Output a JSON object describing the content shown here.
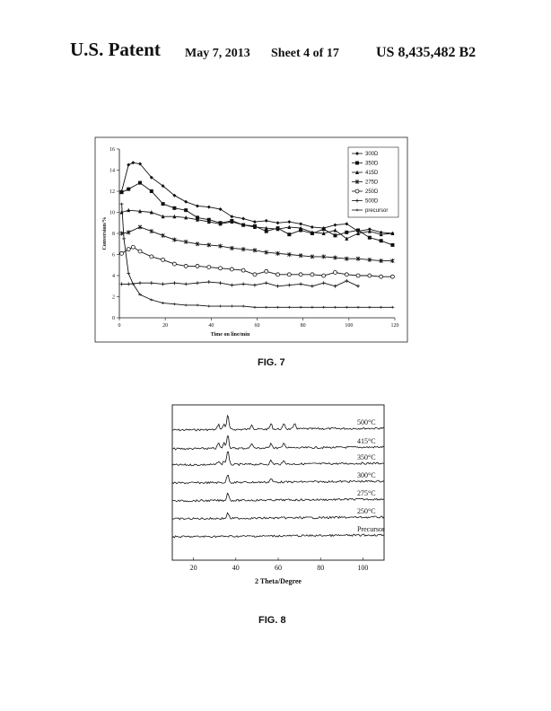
{
  "header": {
    "left": "U.S. Patent",
    "date": "May 7, 2013",
    "sheet": "Sheet 4 of 17",
    "patent_no": "US 8,435,482 B2"
  },
  "figures": {
    "fig7_label": "FIG. 7",
    "fig8_label": "FIG. 8"
  },
  "chart_data": [
    {
      "type": "line",
      "xlabel": "Time on line/min",
      "ylabel": "Conversion/%",
      "xlim": [
        0,
        120
      ],
      "ylim": [
        0,
        16
      ],
      "xticks": [
        0,
        20,
        40,
        60,
        80,
        100,
        120
      ],
      "yticks": [
        0,
        2,
        4,
        6,
        8,
        10,
        12,
        14,
        16
      ],
      "legend_position": "top-right",
      "grid": false,
      "series": [
        {
          "name": "300D",
          "marker": "diamond",
          "points": [
            [
              1,
              12
            ],
            [
              4,
              14.5
            ],
            [
              6,
              14.7
            ],
            [
              9,
              14.6
            ],
            [
              14,
              13.3
            ],
            [
              19,
              12.5
            ],
            [
              24,
              11.6
            ],
            [
              29,
              11
            ],
            [
              34,
              10.6
            ],
            [
              39,
              10.5
            ],
            [
              44,
              10.3
            ],
            [
              49,
              9.6
            ],
            [
              54,
              9.4
            ],
            [
              59,
              9.1
            ],
            [
              64,
              9.2
            ],
            [
              69,
              9
            ],
            [
              74,
              9.1
            ],
            [
              79,
              8.9
            ],
            [
              84,
              8.6
            ],
            [
              89,
              8.5
            ],
            [
              94,
              8.8
            ],
            [
              99,
              8.9
            ],
            [
              104,
              8.2
            ],
            [
              109,
              8.4
            ],
            [
              114,
              8.1
            ],
            [
              119,
              8
            ]
          ]
        },
        {
          "name": "350D",
          "marker": "square",
          "points": [
            [
              1,
              11.9
            ],
            [
              4,
              12.2
            ],
            [
              9,
              12.8
            ],
            [
              14,
              12
            ],
            [
              19,
              10.8
            ],
            [
              24,
              10.4
            ],
            [
              29,
              10.2
            ],
            [
              34,
              9.5
            ],
            [
              39,
              9.3
            ],
            [
              44,
              9
            ],
            [
              49,
              9.2
            ],
            [
              54,
              8.8
            ],
            [
              59,
              8.7
            ],
            [
              64,
              8.2
            ],
            [
              69,
              8.5
            ],
            [
              74,
              7.9
            ],
            [
              79,
              8.3
            ],
            [
              84,
              8
            ],
            [
              89,
              8.4
            ],
            [
              94,
              7.8
            ],
            [
              99,
              8.1
            ],
            [
              104,
              8.3
            ],
            [
              109,
              7.6
            ],
            [
              114,
              7.3
            ],
            [
              119,
              6.9
            ]
          ]
        },
        {
          "name": "415D",
          "marker": "triangle",
          "points": [
            [
              1,
              10
            ],
            [
              4,
              10.2
            ],
            [
              9,
              10.1
            ],
            [
              14,
              10
            ],
            [
              19,
              9.6
            ],
            [
              24,
              9.6
            ],
            [
              29,
              9.5
            ],
            [
              34,
              9.3
            ],
            [
              39,
              9.1
            ],
            [
              44,
              8.9
            ],
            [
              49,
              9.1
            ],
            [
              54,
              8.8
            ],
            [
              59,
              8.6
            ],
            [
              64,
              8.5
            ],
            [
              69,
              8.4
            ],
            [
              74,
              8.6
            ],
            [
              79,
              8.5
            ],
            [
              84,
              8.1
            ],
            [
              89,
              8
            ],
            [
              94,
              8.3
            ],
            [
              99,
              7.5
            ],
            [
              104,
              8
            ],
            [
              109,
              8.2
            ],
            [
              114,
              7.9
            ],
            [
              119,
              8
            ]
          ]
        },
        {
          "name": "275D",
          "marker": "star",
          "points": [
            [
              1,
              8
            ],
            [
              4,
              8.1
            ],
            [
              9,
              8.6
            ],
            [
              14,
              8.2
            ],
            [
              19,
              7.8
            ],
            [
              24,
              7.4
            ],
            [
              29,
              7.2
            ],
            [
              34,
              7
            ],
            [
              39,
              6.9
            ],
            [
              44,
              6.8
            ],
            [
              49,
              6.6
            ],
            [
              54,
              6.5
            ],
            [
              59,
              6.4
            ],
            [
              64,
              6.2
            ],
            [
              69,
              6.1
            ],
            [
              74,
              6
            ],
            [
              79,
              5.9
            ],
            [
              84,
              5.8
            ],
            [
              89,
              5.8
            ],
            [
              94,
              5.7
            ],
            [
              99,
              5.6
            ],
            [
              104,
              5.6
            ],
            [
              109,
              5.5
            ],
            [
              114,
              5.4
            ],
            [
              119,
              5.4
            ]
          ]
        },
        {
          "name": "250D",
          "marker": "circle",
          "points": [
            [
              1,
              6.1
            ],
            [
              4,
              6.5
            ],
            [
              6,
              6.7
            ],
            [
              9,
              6.3
            ],
            [
              14,
              5.8
            ],
            [
              19,
              5.5
            ],
            [
              24,
              5.1
            ],
            [
              29,
              4.9
            ],
            [
              34,
              4.9
            ],
            [
              39,
              4.8
            ],
            [
              44,
              4.7
            ],
            [
              49,
              4.6
            ],
            [
              54,
              4.5
            ],
            [
              59,
              4.1
            ],
            [
              64,
              4.4
            ],
            [
              69,
              4.1
            ],
            [
              74,
              4.1
            ],
            [
              79,
              4.1
            ],
            [
              84,
              4.1
            ],
            [
              89,
              4
            ],
            [
              94,
              4.3
            ],
            [
              99,
              4.1
            ],
            [
              104,
              4
            ],
            [
              109,
              4
            ],
            [
              114,
              3.9
            ],
            [
              119,
              3.9
            ]
          ]
        },
        {
          "name": "500D",
          "marker": "plus",
          "points": [
            [
              1,
              3.2
            ],
            [
              4,
              3.2
            ],
            [
              9,
              3.3
            ],
            [
              14,
              3.3
            ],
            [
              19,
              3.2
            ],
            [
              24,
              3.3
            ],
            [
              29,
              3.2
            ],
            [
              34,
              3.3
            ],
            [
              39,
              3.4
            ],
            [
              44,
              3.3
            ],
            [
              49,
              3.1
            ],
            [
              54,
              3.2
            ],
            [
              59,
              3.1
            ],
            [
              64,
              3.3
            ],
            [
              69,
              3
            ],
            [
              74,
              3.1
            ],
            [
              79,
              3.2
            ],
            [
              84,
              3
            ],
            [
              89,
              3.3
            ],
            [
              94,
              3
            ],
            [
              99,
              3.5
            ],
            [
              104,
              3
            ]
          ]
        },
        {
          "name": "precursor",
          "marker": "cross",
          "points": [
            [
              1,
              10.8
            ],
            [
              2,
              7.5
            ],
            [
              4,
              4.2
            ],
            [
              6,
              3.2
            ],
            [
              9,
              2.2
            ],
            [
              14,
              1.7
            ],
            [
              19,
              1.4
            ],
            [
              24,
              1.3
            ],
            [
              29,
              1.2
            ],
            [
              34,
              1.2
            ],
            [
              39,
              1.1
            ],
            [
              44,
              1.1
            ],
            [
              49,
              1.1
            ],
            [
              54,
              1.1
            ],
            [
              59,
              1
            ],
            [
              64,
              1
            ],
            [
              69,
              1
            ],
            [
              74,
              1
            ],
            [
              79,
              1
            ],
            [
              84,
              1
            ],
            [
              89,
              1
            ],
            [
              94,
              1
            ],
            [
              99,
              1
            ],
            [
              104,
              1
            ],
            [
              109,
              1
            ],
            [
              114,
              1
            ],
            [
              119,
              1
            ]
          ]
        }
      ]
    },
    {
      "type": "line",
      "xlabel": "2 Theta/Degree",
      "ylabel": "",
      "xlim": [
        10,
        110
      ],
      "xticks": [
        20,
        40,
        60,
        80,
        100
      ],
      "yticks_shown": false,
      "grid": false,
      "series": [
        {
          "name": "500°C",
          "peaks": [
            31.8,
            34.4,
            36.2,
            47.5,
            56.6,
            62.8,
            67.9
          ]
        },
        {
          "name": "415°C",
          "peaks": [
            31.8,
            34.4,
            36.2,
            47.5,
            56.6,
            62.8
          ]
        },
        {
          "name": "350°C",
          "peaks": [
            31.8,
            34.4,
            36.2,
            56.6,
            62.8
          ]
        },
        {
          "name": "300°C",
          "peaks": [
            36.2,
            56.6
          ]
        },
        {
          "name": "275°C",
          "peaks": [
            36.2
          ]
        },
        {
          "name": "250°C",
          "peaks": [
            36.2
          ]
        },
        {
          "name": "Precursor",
          "peaks": []
        }
      ]
    }
  ]
}
